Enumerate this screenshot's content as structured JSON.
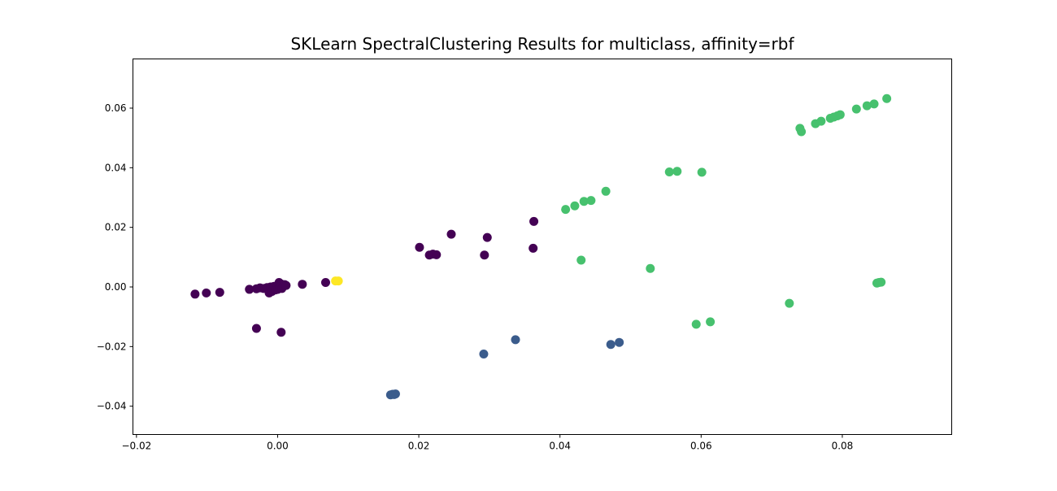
{
  "chart_data": {
    "type": "scatter",
    "title": "SKLearn SpectralClustering Results for multiclass, affinity=rbf",
    "xlabel": "",
    "ylabel": "",
    "xlim": [
      -0.0205,
      0.0955
    ],
    "ylim": [
      -0.0495,
      0.0765
    ],
    "x_ticks": [
      -0.02,
      0.0,
      0.02,
      0.04,
      0.06,
      0.08
    ],
    "x_tick_labels": [
      "−0.02",
      "0.00",
      "0.02",
      "0.04",
      "0.06",
      "0.08"
    ],
    "y_ticks": [
      -0.04,
      -0.02,
      0.0,
      0.02,
      0.04,
      0.06
    ],
    "y_tick_labels": [
      "−0.04",
      "−0.02",
      "0.00",
      "0.02",
      "0.04",
      "0.06"
    ],
    "grid": false,
    "legend": "none",
    "series": [
      {
        "color": "#440154",
        "points": [
          [
            -0.0117,
            -0.0024
          ],
          [
            -0.0101,
            -0.002
          ],
          [
            -0.0082,
            -0.0018
          ],
          [
            -0.004,
            -0.0008
          ],
          [
            -0.003,
            -0.0006
          ],
          [
            -0.0025,
            -0.0003
          ],
          [
            -0.002,
            -0.0005
          ],
          [
            -0.0015,
            -0.0002
          ],
          [
            -0.0012,
            -0.002
          ],
          [
            -0.001,
            0.0
          ],
          [
            -0.0008,
            -0.0015
          ],
          [
            -0.0005,
            0.0002
          ],
          [
            -0.0003,
            -0.001
          ],
          [
            0.0,
            0.0005
          ],
          [
            0.0,
            -0.0008
          ],
          [
            0.0002,
            0.0015
          ],
          [
            0.0003,
            0.0
          ],
          [
            0.0005,
            0.001
          ],
          [
            0.0006,
            -0.0005
          ],
          [
            0.0008,
            0.0002
          ],
          [
            0.001,
            0.0008
          ],
          [
            0.0012,
            0.0005
          ],
          [
            0.0035,
            0.0009
          ],
          [
            0.0068,
            0.0015
          ],
          [
            -0.003,
            -0.0139
          ],
          [
            0.0005,
            -0.0152
          ],
          [
            0.0201,
            0.0133
          ],
          [
            0.0215,
            0.0107
          ],
          [
            0.022,
            0.011
          ],
          [
            0.0225,
            0.0108
          ],
          [
            0.0246,
            0.0177
          ],
          [
            0.0293,
            0.0107
          ],
          [
            0.0297,
            0.0166
          ],
          [
            0.0362,
            0.013
          ],
          [
            0.0363,
            0.022
          ]
        ]
      },
      {
        "color": "#3b5c8c",
        "points": [
          [
            0.016,
            -0.0362
          ],
          [
            0.0163,
            -0.036
          ],
          [
            0.0165,
            -0.0361
          ],
          [
            0.0167,
            -0.0359
          ],
          [
            0.0292,
            -0.0225
          ],
          [
            0.0337,
            -0.0177
          ],
          [
            0.0472,
            -0.0193
          ],
          [
            0.0484,
            -0.0186
          ]
        ]
      },
      {
        "color": "#47c16e",
        "points": [
          [
            0.0408,
            0.026
          ],
          [
            0.0421,
            0.0272
          ],
          [
            0.0434,
            0.0287
          ],
          [
            0.0444,
            0.029
          ],
          [
            0.0465,
            0.0321
          ],
          [
            0.043,
            0.009
          ],
          [
            0.0528,
            0.0062
          ],
          [
            0.0555,
            0.0386
          ],
          [
            0.0566,
            0.0388
          ],
          [
            0.0601,
            0.0385
          ],
          [
            0.0593,
            -0.0125
          ],
          [
            0.0613,
            -0.0117
          ],
          [
            0.0725,
            -0.0055
          ],
          [
            0.0849,
            0.0013
          ],
          [
            0.0852,
            0.0015
          ],
          [
            0.0855,
            0.0016
          ],
          [
            0.074,
            0.0532
          ],
          [
            0.0742,
            0.0521
          ],
          [
            0.0762,
            0.0548
          ],
          [
            0.077,
            0.0556
          ],
          [
            0.0783,
            0.0566
          ],
          [
            0.0788,
            0.057
          ],
          [
            0.0793,
            0.0574
          ],
          [
            0.0797,
            0.0578
          ],
          [
            0.082,
            0.0597
          ],
          [
            0.0835,
            0.0608
          ],
          [
            0.0845,
            0.0614
          ],
          [
            0.0863,
            0.0632
          ]
        ]
      },
      {
        "color": "#fde725",
        "points": [
          [
            0.0082,
            0.002
          ],
          [
            0.0086,
            0.002
          ]
        ]
      }
    ]
  }
}
